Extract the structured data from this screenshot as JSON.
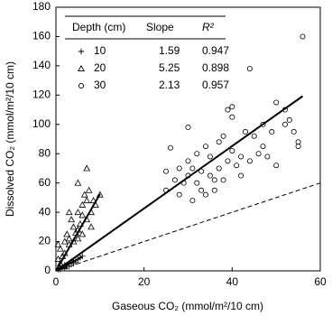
{
  "chart_data": {
    "type": "scatter",
    "x_label": "Gaseous CO₂  (mmol/m²/10 cm)",
    "y_label": "Dissolved CO₂ (mmol/m²/10 cm)",
    "xlim": [
      0,
      60
    ],
    "xticks": [
      0,
      20,
      40,
      60
    ],
    "ylim": [
      0,
      180
    ],
    "yticks": [
      0,
      20,
      40,
      60,
      80,
      100,
      120,
      140,
      160,
      180
    ],
    "table_headers": [
      "Depth (cm)",
      "Slope",
      "R²"
    ],
    "series": [
      {
        "name": "10",
        "marker": "plus",
        "color": "#000",
        "slope": 1.59,
        "r2": 0.947,
        "x": [
          0.5,
          1,
          1.5,
          2,
          2.5,
          3,
          3.5,
          4,
          4.5,
          5,
          5.5,
          6,
          2,
          3,
          1,
          4
        ],
        "values": [
          1,
          2,
          3,
          4,
          3,
          5,
          6,
          7,
          6,
          8,
          9,
          10,
          2,
          3,
          1,
          5
        ]
      },
      {
        "name": "20",
        "marker": "triangle",
        "color": "#000",
        "slope": 5.25,
        "r2": 0.898,
        "x": [
          0.5,
          1,
          0.5,
          1.5,
          2,
          2,
          3,
          3,
          2.5,
          4,
          4,
          3.5,
          5,
          5,
          5.5,
          6,
          6,
          7,
          7,
          6.5,
          7.5,
          8,
          8,
          9,
          10,
          5,
          4.5,
          3,
          1,
          2,
          6,
          8.5,
          7,
          5
        ],
        "values": [
          18,
          15,
          8,
          10,
          12,
          20,
          22,
          18,
          25,
          20,
          30,
          35,
          28,
          40,
          32,
          45,
          38,
          35,
          48,
          52,
          55,
          40,
          30,
          45,
          52,
          22,
          26,
          40,
          5,
          3,
          25,
          48,
          70,
          60
        ]
      },
      {
        "name": "30",
        "marker": "circle",
        "color": "#000",
        "slope": 2.13,
        "r2": 0.957,
        "x": [
          25,
          25,
          26,
          27,
          28,
          28,
          29,
          30,
          30,
          31,
          31,
          32,
          32,
          33,
          33,
          34,
          34,
          35,
          35,
          36,
          37,
          37,
          38,
          38,
          39,
          39,
          40,
          40,
          40,
          41,
          42,
          42,
          43,
          44,
          44,
          45,
          46,
          47,
          47,
          48,
          49,
          50,
          50,
          52,
          52,
          54,
          55,
          56,
          55,
          53,
          30,
          36
        ],
        "values": [
          55,
          68,
          84,
          62,
          70,
          52,
          60,
          75,
          98,
          48,
          70,
          80,
          60,
          68,
          55,
          52,
          85,
          65,
          78,
          55,
          70,
          88,
          62,
          92,
          110,
          75,
          82,
          105,
          112,
          72,
          78,
          65,
          95,
          75,
          138,
          92,
          80,
          85,
          100,
          78,
          95,
          115,
          72,
          100,
          110,
          95,
          85,
          160,
          88,
          103,
          65,
          62
        ]
      }
    ]
  }
}
